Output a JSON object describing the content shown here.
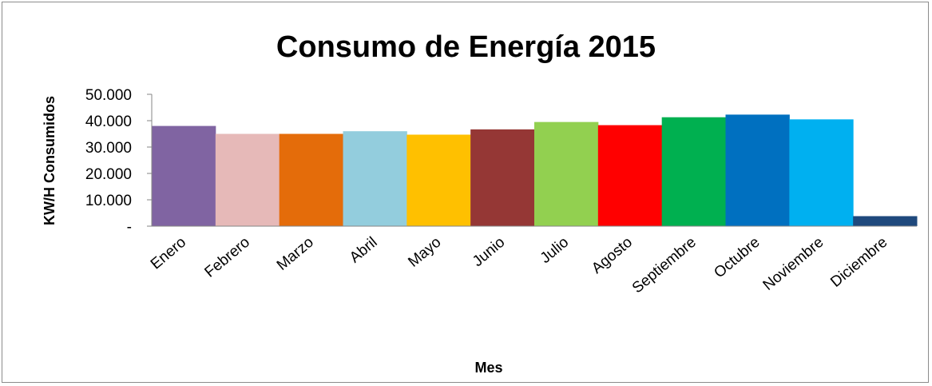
{
  "chart_data": {
    "type": "bar",
    "title": "Consumo de Energía 2015",
    "xlabel": "Mes",
    "ylabel": "KW/H Consumidos",
    "ylim": [
      0,
      50000
    ],
    "yticks": [
      0,
      10000,
      20000,
      30000,
      40000,
      50000
    ],
    "ytick_labels": [
      "-",
      "10.000",
      "20.000",
      "30.000",
      "40.000",
      "50.000"
    ],
    "grid": false,
    "legend": "none",
    "categories": [
      "Enero",
      "Febrero",
      "Marzo",
      "Abril",
      "Mayo",
      "Junio",
      "Julio",
      "Agosto",
      "Septiembre",
      "Octubre",
      "Noviembre",
      "Diciembre"
    ],
    "values": [
      38000,
      35000,
      35000,
      36000,
      34700,
      36700,
      39500,
      38300,
      41300,
      42300,
      40500,
      3800
    ],
    "colors": [
      "#8064a2",
      "#e6b9b8",
      "#e46c0a",
      "#93cddd",
      "#ffc000",
      "#953735",
      "#92d050",
      "#ff0000",
      "#00b050",
      "#0070c0",
      "#00b0f0",
      "#1f497d"
    ]
  }
}
